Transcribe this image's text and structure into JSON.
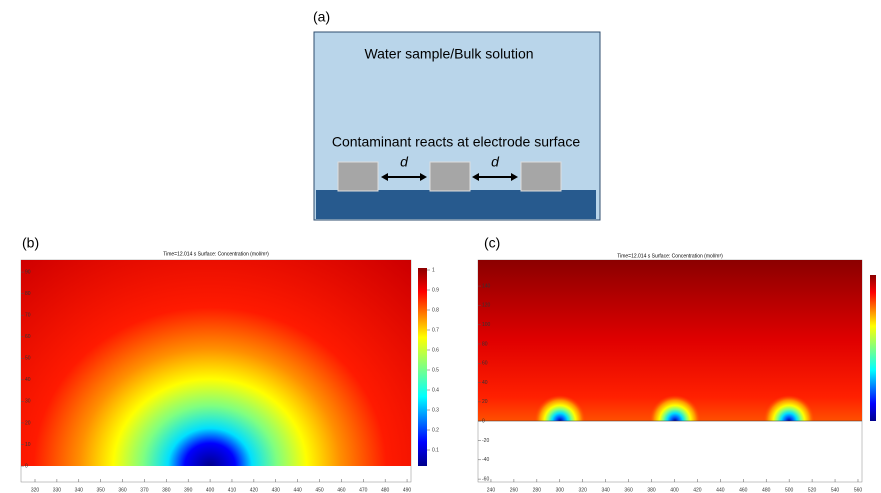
{
  "panel_a": {
    "label": "(a)",
    "bulk": "Water sample/Bulk solution",
    "surface": "Contaminant reacts at electrode surface",
    "gap_labels": [
      "d",
      "d"
    ]
  },
  "panel_b": {
    "label": "(b)",
    "title": "Time=12.014 s   Surface: Concentration (mol/m³)",
    "xlim": [
      313.6,
      491.8
    ],
    "xticks": [
      320,
      330,
      340,
      350,
      360,
      370,
      380,
      390,
      400,
      410,
      420,
      430,
      440,
      450,
      460,
      470,
      480,
      490
    ],
    "ylim": [
      -7.4,
      95.6
    ],
    "yticks": [
      0,
      10,
      20,
      30,
      40,
      50,
      60,
      70,
      80,
      90
    ],
    "clim": [
      0.02,
      1.01
    ],
    "cticks": [
      0.1,
      0.2,
      0.3,
      0.4,
      0.5,
      0.6,
      0.7,
      0.8,
      0.9,
      1
    ]
  },
  "panel_c": {
    "label": "(c)",
    "title": "Time=12.014 s   Surface: Concentration (mol/m³)",
    "xlim": [
      228.7,
      563.5
    ],
    "xticks": [
      240,
      260,
      280,
      300,
      320,
      340,
      360,
      380,
      400,
      420,
      440,
      460,
      480,
      500,
      520,
      540,
      560
    ],
    "ylim": [
      -63,
      167
    ],
    "yticks": [
      -60,
      -40,
      -20,
      0,
      20,
      40,
      60,
      80,
      100,
      120,
      140
    ]
  }
}
